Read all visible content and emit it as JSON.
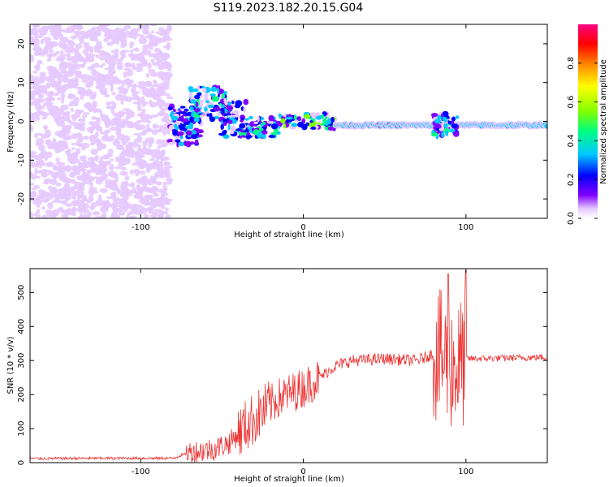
{
  "title": "S119.2023.182.20.15.G04",
  "charts": [
    {
      "type": "heatmap",
      "xlabel": "Height of straight line (km)",
      "ylabel": "Frequency (Hz)",
      "xlim": [
        -168,
        150
      ],
      "ylim": [
        -25,
        25
      ],
      "xticks": [
        -100,
        0,
        100
      ],
      "yticks": [
        -20,
        -10,
        0,
        10,
        20
      ],
      "colorbar": {
        "label": "Normalized spectral amplitude",
        "range": [
          0,
          1
        ],
        "ticks": [
          "0.0",
          "0.2",
          "0.4",
          "0.6",
          "0.8"
        ],
        "colormap": [
          "#ffffff",
          "#e6c9ff",
          "#8000ff",
          "#0000ff",
          "#00c8ff",
          "#00ff80",
          "#80ff00",
          "#ffff00",
          "#ff8000",
          "#ff0000",
          "#ff0080"
        ]
      },
      "grid": false
    },
    {
      "type": "line",
      "xlabel": "Height of straight line (km)",
      "ylabel": "SNR (10 * v/v)",
      "xlim": [
        -168,
        150
      ],
      "ylim": [
        0,
        570
      ],
      "xticks": [
        -100,
        0,
        100
      ],
      "yticks": [
        0,
        100,
        200,
        300,
        400,
        500
      ],
      "color": "#ee3333",
      "envelope": [
        [
          -168,
          12
        ],
        [
          -120,
          13
        ],
        [
          -80,
          13
        ],
        [
          -70,
          30
        ],
        [
          -55,
          40
        ],
        [
          -45,
          60
        ],
        [
          -35,
          110
        ],
        [
          -25,
          150
        ],
        [
          -15,
          190
        ],
        [
          0,
          220
        ],
        [
          10,
          250
        ],
        [
          20,
          285
        ],
        [
          30,
          300
        ],
        [
          50,
          305
        ],
        [
          70,
          300
        ],
        [
          80,
          320
        ],
        [
          88,
          300
        ],
        [
          95,
          280
        ],
        [
          100,
          305
        ],
        [
          150,
          310
        ]
      ],
      "grid": false
    }
  ]
}
